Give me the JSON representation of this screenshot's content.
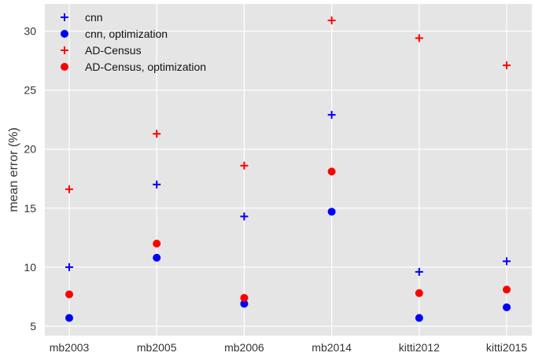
{
  "chart_data": {
    "type": "scatter",
    "title": "",
    "xlabel": "",
    "ylabel": "mean error (%)",
    "categories": [
      "mb2003",
      "mb2005",
      "mb2006",
      "mb2014",
      "kitti2012",
      "kitti2015"
    ],
    "yticks": [
      5,
      10,
      15,
      20,
      25,
      30
    ],
    "ylim": [
      4.2,
      32.3
    ],
    "grid": true,
    "legend_position": "top-left",
    "series": [
      {
        "name": "cnn",
        "marker": "plus",
        "color": "#0000ff",
        "values": [
          10.0,
          17.0,
          14.3,
          22.9,
          9.6,
          10.5
        ]
      },
      {
        "name": "cnn, optimization",
        "marker": "circle",
        "color": "#0000ff",
        "values": [
          5.7,
          10.8,
          6.9,
          14.7,
          5.7,
          6.6
        ]
      },
      {
        "name": "AD-Census",
        "marker": "plus",
        "color": "#ff0000",
        "values": [
          16.6,
          21.3,
          18.6,
          30.9,
          29.4,
          27.1
        ]
      },
      {
        "name": "AD-Census, optimization",
        "marker": "circle",
        "color": "#ff0000",
        "values": [
          7.7,
          12.0,
          7.4,
          18.1,
          7.8,
          8.1
        ]
      }
    ]
  },
  "colors": {
    "plot_background": "#e5e5e5",
    "grid": "#ffffff",
    "text": "#333333"
  }
}
